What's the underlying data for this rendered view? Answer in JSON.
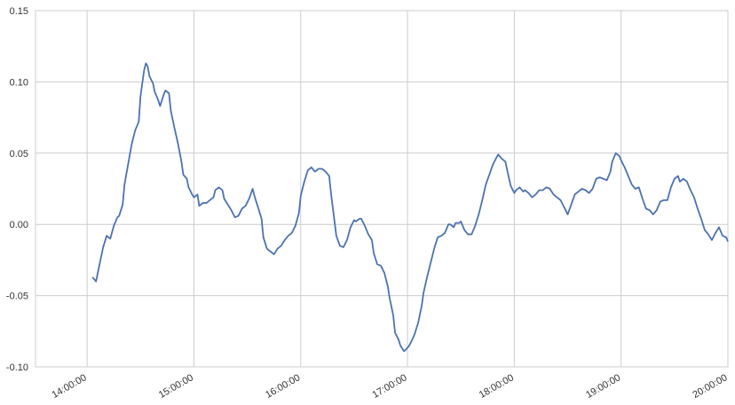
{
  "chart_data": {
    "type": "line",
    "color": "#4c72b0",
    "grid": true,
    "xlim": [
      "13:31:00",
      "20:00:00"
    ],
    "xticks": [
      "14:00:00",
      "15:00:00",
      "16:00:00",
      "17:00:00",
      "18:00:00",
      "19:00:00",
      "20:00:00"
    ],
    "ylim": [
      -0.1,
      0.15
    ],
    "yticks": [
      {
        "value": -0.1,
        "label": "-0.10"
      },
      -0.05,
      {
        "value": 0,
        "label": "0.00"
      },
      0.05,
      {
        "value": 0.1,
        "label": "0.10"
      },
      0.15
    ],
    "x": [
      "14:03:00",
      "14:05:00",
      "14:07:00",
      "14:09:00",
      "14:11:00",
      "14:13:00",
      "14:15:00",
      "14:17:00",
      "14:18:00",
      "14:20:00",
      "14:21:00",
      "14:23:00",
      "14:25:00",
      "14:27:00",
      "14:29:00",
      "14:30:00",
      "14:32:00",
      "14:33:00",
      "14:34:00",
      "14:35:00",
      "14:37:00",
      "14:38:00",
      "14:40:00",
      "14:41:00",
      "14:43:00",
      "14:44:00",
      "14:46:00",
      "14:47:00",
      "14:49:00",
      "14:51:00",
      "14:53:00",
      "14:54:00",
      "14:56:00",
      "14:57:00",
      "14:59:00",
      "15:00:00",
      "15:02:00",
      "15:03:00",
      "15:05:00",
      "15:07:00",
      "15:09:00",
      "15:11:00",
      "15:12:00",
      "15:14:00",
      "15:16:00",
      "15:17:00",
      "15:19:00",
      "15:21:00",
      "15:23:00",
      "15:25:00",
      "15:27:00",
      "15:29:00",
      "15:31:00",
      "15:33:00",
      "15:34:00",
      "15:36:00",
      "15:38:00",
      "15:39:00",
      "15:41:00",
      "15:43:00",
      "15:45:00",
      "15:47:00",
      "15:49:00",
      "15:51:00",
      "15:53:00",
      "15:55:00",
      "15:57:00",
      "15:59:00",
      "16:00:00",
      "16:02:00",
      "16:04:00",
      "16:06:00",
      "16:08:00",
      "16:10:00",
      "16:12:00",
      "16:14:00",
      "16:16:00",
      "16:17:00",
      "16:19:00",
      "16:20:00",
      "16:22:00",
      "16:24:00",
      "16:26:00",
      "16:28:00",
      "16:30:00",
      "16:31:00",
      "16:33:00",
      "16:34:00",
      "16:36:00",
      "16:38:00",
      "16:40:00",
      "16:41:00",
      "16:43:00",
      "16:45:00",
      "16:47:00",
      "16:49:00",
      "16:50:00",
      "16:52:00",
      "16:53:00",
      "16:55:00",
      "16:56:00",
      "16:58:00",
      "16:59:00",
      "17:01:00",
      "17:03:00",
      "17:04:00",
      "17:06:00",
      "17:08:00",
      "17:09:00",
      "17:11:00",
      "17:13:00",
      "17:15:00",
      "17:17:00",
      "17:19:00",
      "17:21:00",
      "17:23:00",
      "17:24:00",
      "17:26:00",
      "17:27:00",
      "17:29:00",
      "17:30:00",
      "17:32:00",
      "17:34:00",
      "17:36:00",
      "17:38:00",
      "17:40:00",
      "17:42:00",
      "17:44:00",
      "17:46:00",
      "17:48:00",
      "17:50:00",
      "17:51:00",
      "17:53:00",
      "17:55:00",
      "17:56:00",
      "17:58:00",
      "18:00:00",
      "18:01:00",
      "18:03:00",
      "18:05:00",
      "18:06:00",
      "18:08:00",
      "18:10:00",
      "18:12:00",
      "18:14:00",
      "18:16:00",
      "18:18:00",
      "18:20:00",
      "18:22:00",
      "18:24:00",
      "18:26:00",
      "18:28:00",
      "18:30:00",
      "18:32:00",
      "18:34:00",
      "18:36:00",
      "18:38:00",
      "18:40:00",
      "18:42:00",
      "18:44:00",
      "18:46:00",
      "18:48:00",
      "18:50:00",
      "18:52:00",
      "18:54:00",
      "18:55:00",
      "18:57:00",
      "18:59:00",
      "19:00:00",
      "19:02:00",
      "19:04:00",
      "19:06:00",
      "19:08:00",
      "19:10:00",
      "19:12:00",
      "19:14:00",
      "19:16:00",
      "19:18:00",
      "19:20:00",
      "19:22:00",
      "19:24:00",
      "19:26:00",
      "19:28:00",
      "19:30:00",
      "19:32:00",
      "19:33:00",
      "19:35:00",
      "19:37:00",
      "19:39:00",
      "19:41:00",
      "19:43:00",
      "19:45:00",
      "19:47:00",
      "19:49:00",
      "19:51:00",
      "19:53:00",
      "19:55:00",
      "19:57:00",
      "19:59:00",
      "20:00:00"
    ],
    "values": [
      -0.037,
      -0.04,
      -0.028,
      -0.016,
      -0.008,
      -0.01,
      -0.001,
      0.005,
      0.006,
      0.014,
      0.028,
      0.042,
      0.056,
      0.066,
      0.072,
      0.09,
      0.108,
      0.113,
      0.111,
      0.104,
      0.099,
      0.093,
      0.087,
      0.083,
      0.091,
      0.094,
      0.092,
      0.08,
      0.068,
      0.057,
      0.044,
      0.035,
      0.032,
      0.026,
      0.021,
      0.019,
      0.021,
      0.013,
      0.015,
      0.015,
      0.017,
      0.019,
      0.024,
      0.026,
      0.024,
      0.018,
      0.014,
      0.01,
      0.005,
      0.006,
      0.011,
      0.013,
      0.018,
      0.025,
      0.02,
      0.012,
      0.004,
      -0.009,
      -0.017,
      -0.019,
      -0.021,
      -0.017,
      -0.015,
      -0.011,
      -0.008,
      -0.006,
      -0.001,
      0.008,
      0.02,
      0.03,
      0.038,
      0.04,
      0.037,
      0.039,
      0.039,
      0.037,
      0.034,
      0.022,
      0.002,
      -0.008,
      -0.015,
      -0.016,
      -0.011,
      -0.002,
      0.003,
      0.002,
      0.004,
      0.004,
      -0.001,
      -0.007,
      -0.011,
      -0.02,
      -0.028,
      -0.029,
      -0.034,
      -0.044,
      -0.052,
      -0.064,
      -0.076,
      -0.081,
      -0.085,
      -0.089,
      -0.088,
      -0.085,
      -0.08,
      -0.077,
      -0.069,
      -0.057,
      -0.048,
      -0.037,
      -0.027,
      -0.017,
      -0.009,
      -0.008,
      -0.006,
      0.0,
      0.0,
      -0.002,
      0.001,
      0.001,
      0.002,
      -0.004,
      -0.007,
      -0.007,
      -0.001,
      0.007,
      0.017,
      0.028,
      0.035,
      0.042,
      0.047,
      0.049,
      0.046,
      0.044,
      0.038,
      0.027,
      0.022,
      0.024,
      0.026,
      0.023,
      0.024,
      0.022,
      0.019,
      0.021,
      0.024,
      0.024,
      0.026,
      0.025,
      0.021,
      0.019,
      0.017,
      0.012,
      0.007,
      0.014,
      0.021,
      0.023,
      0.025,
      0.024,
      0.022,
      0.025,
      0.032,
      0.033,
      0.032,
      0.031,
      0.037,
      0.044,
      0.05,
      0.048,
      0.045,
      0.04,
      0.034,
      0.028,
      0.025,
      0.026,
      0.018,
      0.011,
      0.01,
      0.007,
      0.01,
      0.016,
      0.017,
      0.017,
      0.026,
      0.032,
      0.034,
      0.03,
      0.032,
      0.03,
      0.024,
      0.019,
      0.011,
      0.004,
      -0.004,
      -0.007,
      -0.011,
      -0.006,
      -0.002,
      -0.008,
      -0.009,
      -0.012
    ]
  }
}
